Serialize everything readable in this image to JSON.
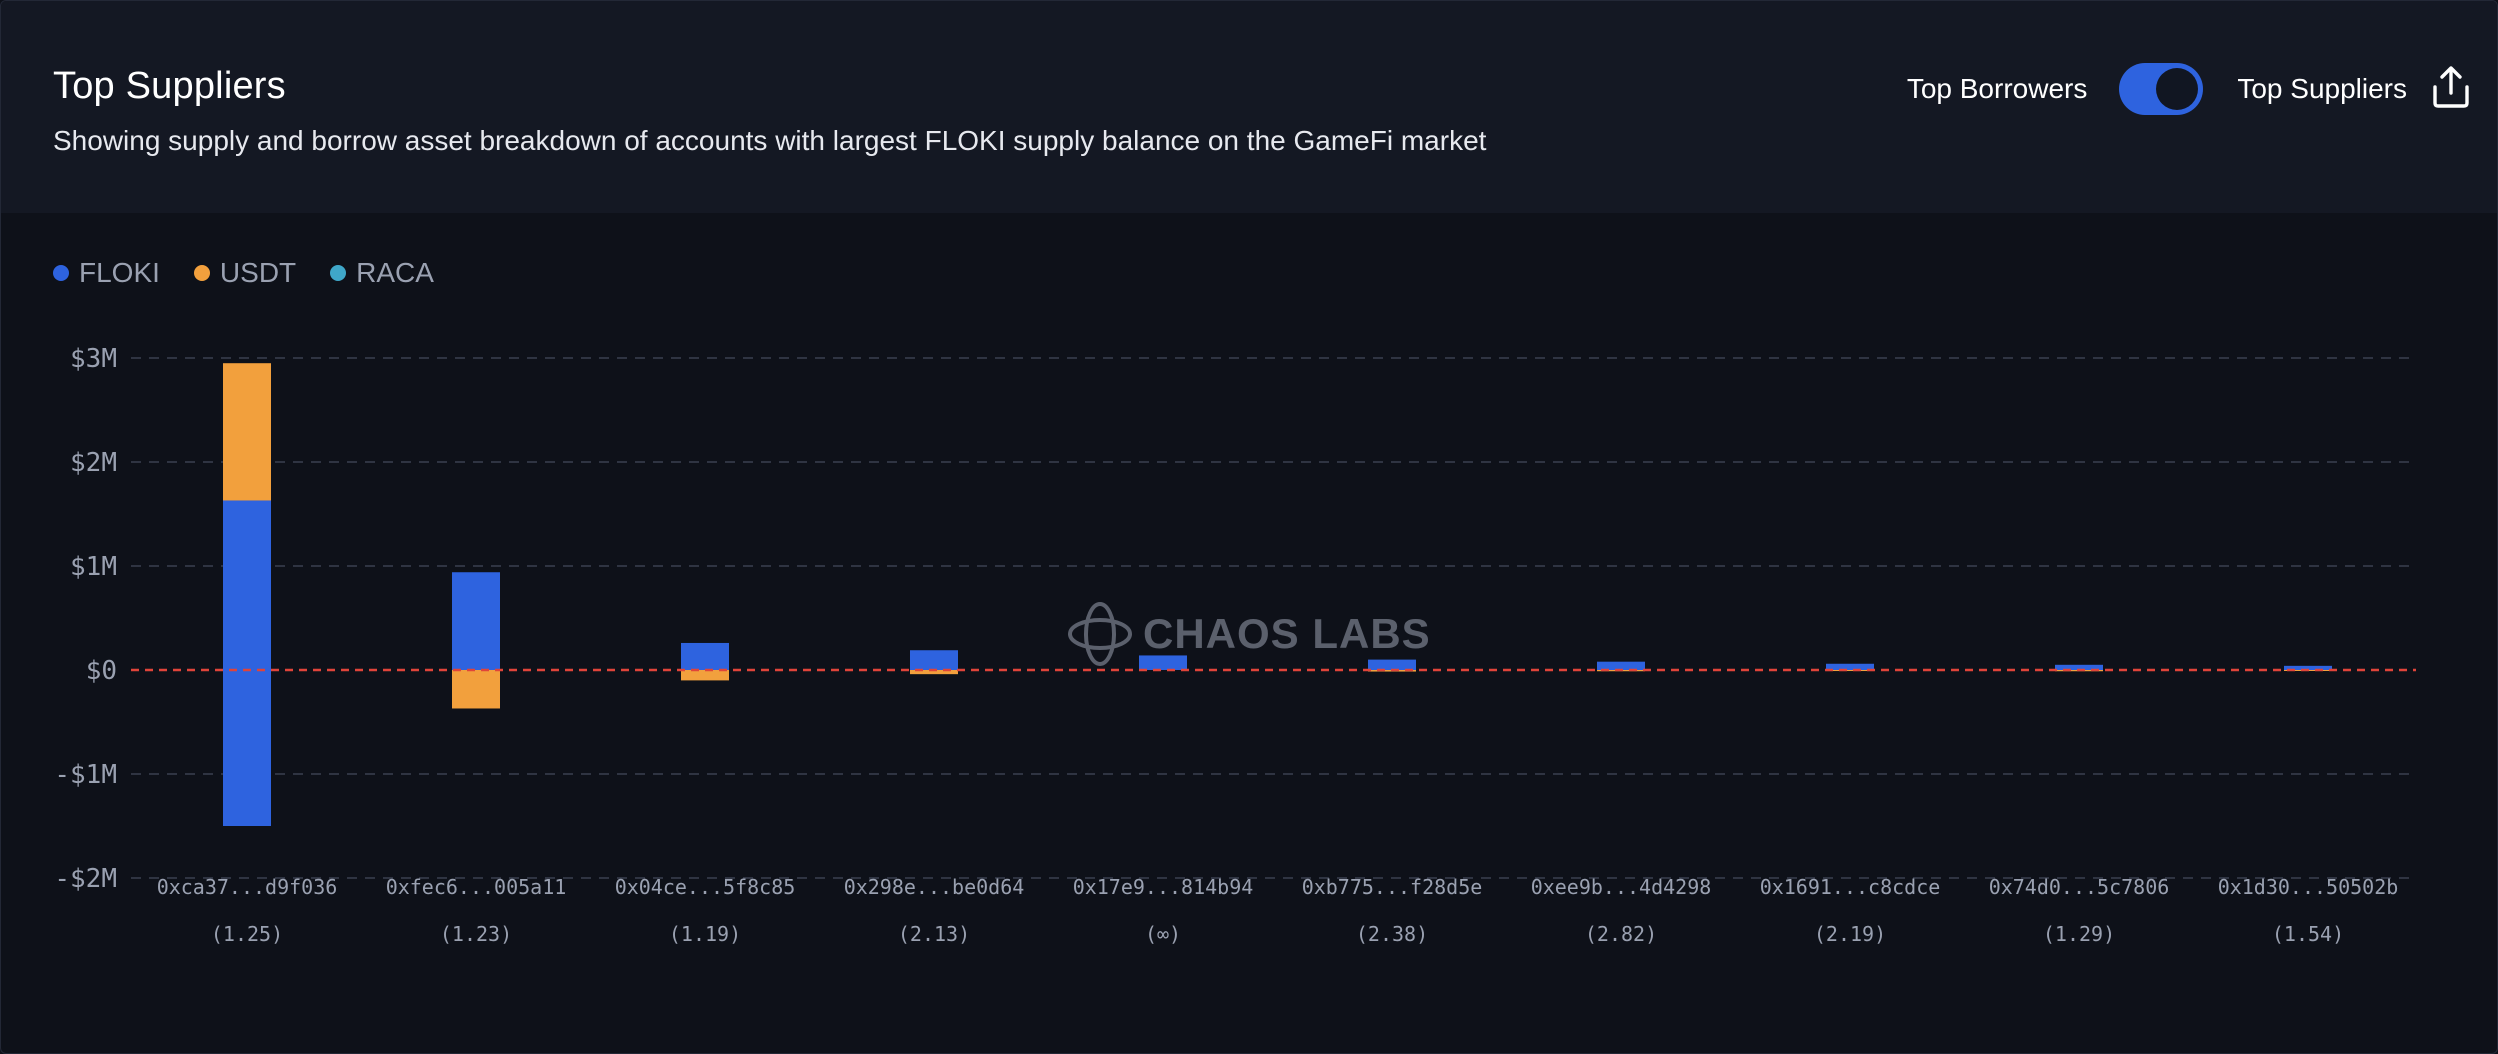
{
  "header": {
    "title": "Top Suppliers",
    "subtitle": "Showing supply and borrow asset breakdown of accounts with largest FLOKI supply balance on the GameFi market"
  },
  "toggle": {
    "left_label": "Top Borrowers",
    "right_label": "Top Suppliers",
    "active": "right"
  },
  "watermark": {
    "text": "CHAOS LABS"
  },
  "icons": {
    "export": "share-export-icon",
    "watermark": "chaos-labs-logo-icon"
  },
  "colors": {
    "FLOKI": "#2e63df",
    "USDT": "#f2a03d",
    "RACA": "#3fa7c9",
    "zero_line": "#e0443a",
    "toggle_accent": "#2e63df"
  },
  "chart_data": {
    "type": "bar",
    "stacked": true,
    "grid": true,
    "legend_position": "top-left",
    "ylim": [
      -2000000,
      3000000
    ],
    "yticks": [
      {
        "value": 3000000,
        "label": "$3M"
      },
      {
        "value": 2000000,
        "label": "$2M"
      },
      {
        "value": 1000000,
        "label": "$1M"
      },
      {
        "value": 0,
        "label": "$0"
      },
      {
        "value": -1000000,
        "label": "-$1M"
      },
      {
        "value": -2000000,
        "label": "-$2M"
      }
    ],
    "categories": [
      "0xca37...d9f036",
      "0xfec6...005a11",
      "0x04ce...5f8c85",
      "0x298e...be0d64",
      "0x17e9...814b94",
      "0xb775...f28d5e",
      "0xee9b...4d4298",
      "0x1691...c8cdce",
      "0x74d0...5c7806",
      "0x1d30...50502b"
    ],
    "health_factors": [
      "(1.25)",
      "(1.23)",
      "(1.19)",
      "(2.13)",
      "(∞)",
      "(2.38)",
      "(2.82)",
      "(2.19)",
      "(1.29)",
      "(1.54)"
    ],
    "series": [
      {
        "name": "FLOKI",
        "supply": [
          1630000,
          940000,
          260000,
          190000,
          140000,
          100000,
          80000,
          60000,
          50000,
          40000
        ],
        "borrow": [
          -1500000,
          0,
          0,
          0,
          0,
          0,
          0,
          0,
          0,
          0
        ]
      },
      {
        "name": "USDT",
        "supply": [
          1320000,
          0,
          0,
          0,
          0,
          0,
          0,
          0,
          0,
          0
        ],
        "borrow": [
          0,
          -370000,
          -100000,
          -40000,
          0,
          -15000,
          -12000,
          -10000,
          -12000,
          -8000
        ]
      },
      {
        "name": "RACA",
        "supply": [
          0,
          0,
          0,
          0,
          0,
          0,
          0,
          0,
          0,
          0
        ],
        "borrow": [
          0,
          0,
          0,
          0,
          0,
          0,
          0,
          0,
          0,
          0
        ]
      }
    ]
  }
}
